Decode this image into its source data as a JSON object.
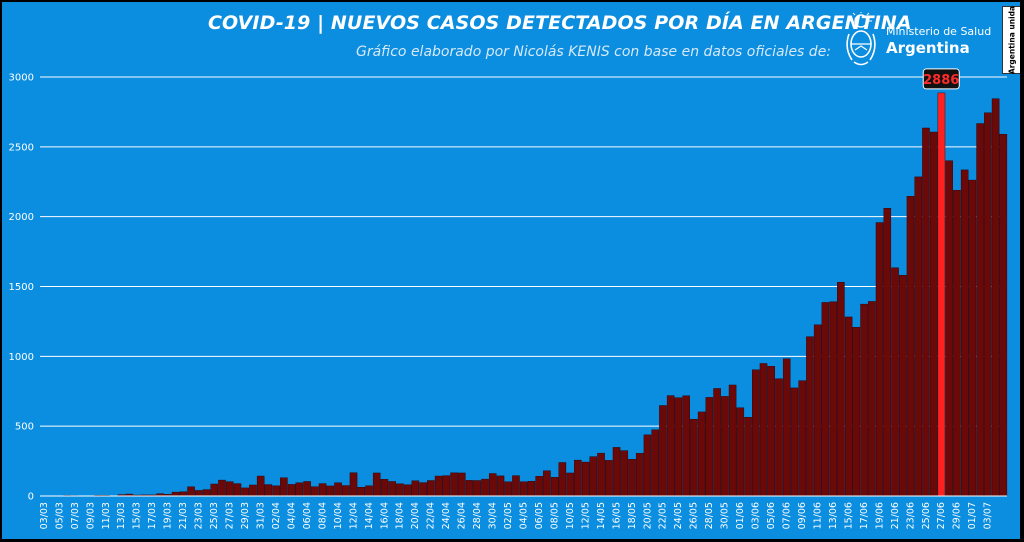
{
  "header": {
    "title": "COVID-19  |  NUEVOS CASOS DETECTADOS POR DÍA EN ARGENTINA",
    "subtitle": "Gráfico elaborado por Nicolás KENIS con base en datos oficiales de:"
  },
  "logo": {
    "ministry": "Ministerio de Salud",
    "country": "Argentina",
    "emblem_icon": "coat-of-arms-icon"
  },
  "badge": {
    "text": "Argentina unida"
  },
  "colors": {
    "background": "#0b8de0",
    "bar": "#6b0808",
    "highlight_bar": "#ff2020",
    "gridline": "#ffffff",
    "text": "#ffffff"
  },
  "chart_data": {
    "type": "bar",
    "title": "COVID-19  |  NUEVOS CASOS DETECTADOS POR DÍA EN ARGENTINA",
    "xlabel": "",
    "ylabel": "",
    "ylim": [
      0,
      3000
    ],
    "yticks": [
      0,
      500,
      1000,
      1500,
      2000,
      2500,
      3000
    ],
    "grid": true,
    "legend": "none",
    "xtick_labels": [
      "03/03",
      "05/03",
      "07/03",
      "09/03",
      "11/03",
      "13/03",
      "15/03",
      "17/03",
      "19/03",
      "21/03",
      "23/03",
      "25/03",
      "27/03",
      "29/03",
      "31/03",
      "02/04",
      "04/04",
      "06/04",
      "08/04",
      "10/04",
      "12/04",
      "14/04",
      "16/04",
      "18/04",
      "20/04",
      "22/04",
      "24/04",
      "26/04",
      "28/04",
      "30/04",
      "02/05",
      "04/05",
      "06/05",
      "08/05",
      "10/05",
      "12/05",
      "14/05",
      "16/05",
      "18/05",
      "20/05",
      "22/05",
      "24/05",
      "26/05",
      "28/05",
      "30/05",
      "01/06",
      "03/06",
      "05/06",
      "07/06",
      "09/06",
      "11/06",
      "13/06",
      "15/06",
      "17/06",
      "19/06",
      "21/06",
      "23/06",
      "25/06",
      "27/06",
      "29/06",
      "01/07",
      "03/07"
    ],
    "start_label": "03/03",
    "values": [
      1,
      0,
      0,
      4,
      3,
      2,
      2,
      5,
      5,
      2,
      10,
      14,
      7,
      8,
      8,
      17,
      12,
      28,
      31,
      66,
      40,
      46,
      86,
      114,
      103,
      89,
      58,
      79,
      143,
      82,
      73,
      131,
      83,
      95,
      104,
      67,
      89,
      72,
      95,
      75,
      167,
      63,
      73,
      165,
      120,
      104,
      88,
      81,
      109,
      96,
      111,
      143,
      146,
      166,
      165,
      112,
      111,
      121,
      161,
      144,
      102,
      146,
      102,
      106,
      141,
      181,
      134,
      240,
      165,
      257,
      243,
      282,
      307,
      255,
      348,
      325,
      263,
      306,
      438,
      474,
      648,
      719,
      704,
      718,
      550,
      602,
      706,
      770,
      713,
      795,
      632,
      564,
      904,
      949,
      929,
      840,
      983,
      774,
      826,
      1141,
      1226,
      1386,
      1391,
      1531,
      1282,
      1208,
      1374,
      1393,
      1958,
      2060,
      1634,
      1581,
      2146,
      2285,
      2635,
      2606,
      2886,
      2401,
      2189,
      2335,
      2262,
      2667,
      2744,
      2845,
      2590
    ],
    "highlight": {
      "index": 116,
      "label": "2886"
    }
  }
}
